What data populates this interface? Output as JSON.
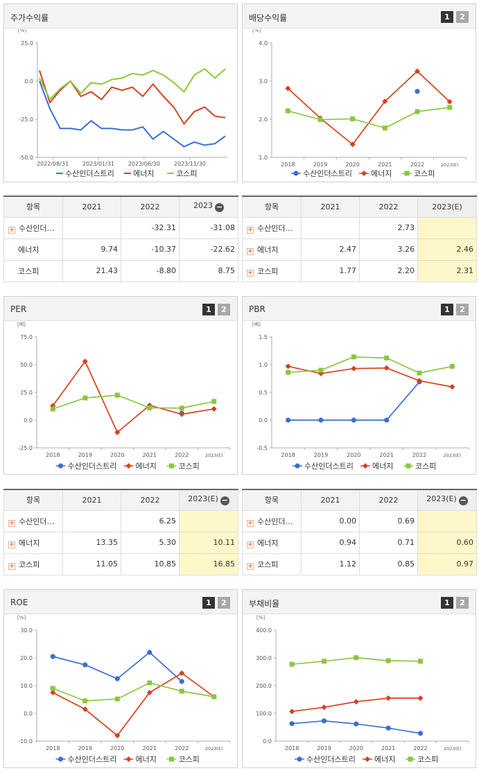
{
  "colors": {
    "company": "#3a6fd0",
    "energy": "#d6401d",
    "kospi": "#8cc63f"
  },
  "legend": [
    "수산인더스트리",
    "에너지",
    "코스피"
  ],
  "buttons": {
    "one": "1",
    "two": "2",
    "minus": "−",
    "plus": "+"
  },
  "stock_return": {
    "title": "주가수익률",
    "unit": "[%]",
    "chart_data": {
      "type": "line",
      "yticks": [
        "25.0",
        "0.0",
        "-25.0",
        "-50.0"
      ],
      "ylim": [
        -50,
        25
      ],
      "xticks": [
        "2022/08/31",
        "2023/01/31",
        "2023/06/30",
        "2023/11/30"
      ],
      "series": [
        {
          "name": "수산인더스트리",
          "values": [
            0,
            -18,
            -31,
            -31,
            -32,
            -26,
            -31,
            -31,
            -32,
            -32,
            -30,
            -38,
            -33,
            -38,
            -43,
            -40,
            -42,
            -41,
            -36
          ]
        },
        {
          "name": "에너지",
          "values": [
            7,
            -14,
            -6,
            0,
            -10,
            -7,
            -12,
            -4,
            -6,
            -4,
            -10,
            -2,
            -10,
            -17,
            -28,
            -20,
            -17,
            -23,
            -24
          ]
        },
        {
          "name": "코스피",
          "values": [
            2,
            -12,
            -5,
            0,
            -8,
            -1,
            -2,
            1,
            2,
            5,
            4,
            7,
            4,
            -1,
            -7,
            4,
            8,
            2,
            8
          ]
        }
      ]
    },
    "table": {
      "header": [
        "항목",
        "2021",
        "2022",
        "2023"
      ],
      "rows": [
        {
          "name": "수산인더…",
          "vals": [
            "",
            "-32.31",
            "-31.08"
          ]
        },
        {
          "name": "에너지",
          "vals": [
            "9.74",
            "-10.37",
            "-22.62"
          ]
        },
        {
          "name": "코스피",
          "vals": [
            "21.43",
            "-8.80",
            "8.75"
          ]
        }
      ]
    }
  },
  "dividend": {
    "title": "배당수익률",
    "unit": "[%]",
    "chart_data": {
      "type": "line",
      "yticks": [
        "4.0",
        "3.0",
        "2.0",
        "1.0"
      ],
      "ylim": [
        1,
        4
      ],
      "categories": [
        "2018",
        "2019",
        "2020",
        "2021",
        "2022",
        "2023(E)"
      ],
      "series": [
        {
          "name": "수산인더스트리",
          "values": [
            null,
            null,
            null,
            null,
            2.73,
            null
          ]
        },
        {
          "name": "에너지",
          "values": [
            2.81,
            2.03,
            1.34,
            2.47,
            3.26,
            2.46
          ]
        },
        {
          "name": "코스피",
          "values": [
            2.22,
            1.99,
            2.01,
            1.77,
            2.2,
            2.31
          ]
        }
      ]
    },
    "table": {
      "header": [
        "항목",
        "2021",
        "2022",
        "2023(E)"
      ],
      "rows": [
        {
          "name": "수산인더…",
          "vals": [
            "",
            "2.73",
            ""
          ]
        },
        {
          "name": "에너지",
          "vals": [
            "2.47",
            "3.26",
            "2.46"
          ]
        },
        {
          "name": "코스피",
          "vals": [
            "1.77",
            "2.20",
            "2.31"
          ]
        }
      ]
    }
  },
  "per": {
    "title": "PER",
    "unit": "[배]",
    "chart_data": {
      "type": "line",
      "yticks": [
        "75.0",
        "50.0",
        "25.0",
        "0.0",
        "-25.0"
      ],
      "ylim": [
        -25,
        75
      ],
      "categories": [
        "2018",
        "2019",
        "2020",
        "2021",
        "2022",
        "2023(E)"
      ],
      "series": [
        {
          "name": "수산인더스트리",
          "values": [
            null,
            null,
            null,
            null,
            6.25,
            null
          ]
        },
        {
          "name": "에너지",
          "values": [
            13,
            53,
            -11,
            13.35,
            5.3,
            10.11
          ]
        },
        {
          "name": "코스피",
          "values": [
            10,
            20,
            22.5,
            11.05,
            10.85,
            16.85
          ]
        }
      ]
    },
    "table": {
      "header": [
        "항목",
        "2021",
        "2022",
        "2023(E)"
      ],
      "rows": [
        {
          "name": "수산인더…",
          "vals": [
            "",
            "6.25",
            ""
          ]
        },
        {
          "name": "에너지",
          "vals": [
            "13.35",
            "5.30",
            "10.11"
          ]
        },
        {
          "name": "코스피",
          "vals": [
            "11.05",
            "10.85",
            "16.85"
          ]
        }
      ]
    }
  },
  "pbr": {
    "title": "PBR",
    "unit": "[배]",
    "chart_data": {
      "type": "line",
      "yticks": [
        "1.5",
        "1.0",
        "0.5",
        "0.0",
        "-0.5"
      ],
      "ylim": [
        -0.5,
        1.5
      ],
      "categories": [
        "2018",
        "2019",
        "2020",
        "2021",
        "2022",
        "2023(E)"
      ],
      "series": [
        {
          "name": "수산인더스트리",
          "values": [
            0,
            0,
            0,
            0.0,
            0.69,
            null
          ]
        },
        {
          "name": "에너지",
          "values": [
            0.97,
            0.84,
            0.93,
            0.94,
            0.71,
            0.6
          ]
        },
        {
          "name": "코스피",
          "values": [
            0.86,
            0.9,
            1.14,
            1.12,
            0.85,
            0.97
          ]
        }
      ]
    },
    "table": {
      "header": [
        "항목",
        "2021",
        "2022",
        "2023(E)"
      ],
      "rows": [
        {
          "name": "수산인더…",
          "vals": [
            "0.00",
            "0.69",
            ""
          ]
        },
        {
          "name": "에너지",
          "vals": [
            "0.94",
            "0.71",
            "0.60"
          ]
        },
        {
          "name": "코스피",
          "vals": [
            "1.12",
            "0.85",
            "0.97"
          ]
        }
      ]
    }
  },
  "roe": {
    "title": "ROE",
    "unit": "[%]",
    "chart_data": {
      "type": "line",
      "yticks": [
        "30.0",
        "20.0",
        "10.0",
        "0.0",
        "-10.0"
      ],
      "ylim": [
        -10,
        30
      ],
      "categories": [
        "2018",
        "2019",
        "2020",
        "2021",
        "2022",
        "2023(E)"
      ],
      "series": [
        {
          "name": "수산인더스트리",
          "values": [
            20.5,
            17.5,
            12.5,
            22,
            11.5,
            null
          ]
        },
        {
          "name": "에너지",
          "values": [
            7.5,
            1.5,
            -8,
            7.5,
            14.5,
            6
          ]
        },
        {
          "name": "코스피",
          "values": [
            9,
            4.5,
            5.2,
            11,
            8,
            6
          ]
        }
      ]
    }
  },
  "debt": {
    "title": "부채비율",
    "unit": "[%]",
    "chart_data": {
      "type": "line",
      "yticks": [
        "400.0",
        "300.0",
        "200.0",
        "100.0",
        "0.0"
      ],
      "ylim": [
        0,
        400
      ],
      "categories": [
        "2018",
        "2019",
        "2020",
        "2021",
        "2022",
        "2023(E)"
      ],
      "series": [
        {
          "name": "수산인더스트리",
          "values": [
            63,
            73,
            62,
            47,
            28,
            null
          ]
        },
        {
          "name": "에너지",
          "values": [
            107,
            122,
            142,
            155,
            155,
            null
          ]
        },
        {
          "name": "코스피",
          "values": [
            277,
            288,
            301,
            290,
            288,
            null
          ]
        }
      ]
    }
  }
}
